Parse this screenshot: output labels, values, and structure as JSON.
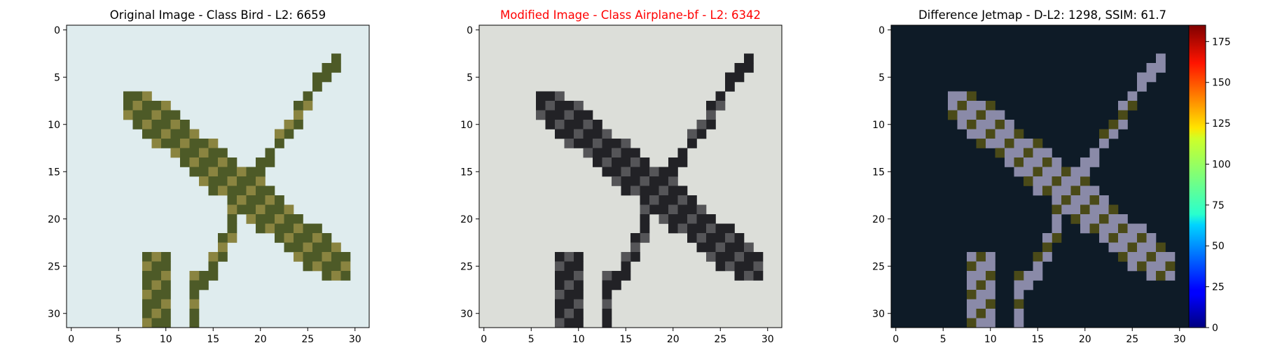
{
  "chart_data": [
    {
      "type": "heatmap",
      "title": "Original Image - Class Bird - L2: 6659",
      "title_color": "#000000",
      "xlim": [
        -0.5,
        31.5
      ],
      "ylim": [
        31.5,
        -0.5
      ],
      "xticks": [
        0,
        5,
        10,
        15,
        20,
        25,
        30
      ],
      "yticks": [
        0,
        5,
        10,
        15,
        20,
        25,
        30
      ],
      "background": "#dfecee",
      "stroke_color": "#4d5a27",
      "highlight_color": "#8a8440"
    },
    {
      "type": "heatmap",
      "title": "Modified Image - Class Airplane-bf - L2: 6342",
      "title_color": "#ff0000",
      "xlim": [
        -0.5,
        31.5
      ],
      "ylim": [
        31.5,
        -0.5
      ],
      "xticks": [
        0,
        5,
        10,
        15,
        20,
        25,
        30
      ],
      "yticks": [
        0,
        5,
        10,
        15,
        20,
        25,
        30
      ],
      "background": "#dcded9",
      "stroke_color": "#222226",
      "highlight_color": "#555558"
    },
    {
      "type": "heatmap",
      "title": "Difference Jetmap - D-L2: 1298, SSIM: 61.7",
      "title_color": "#000000",
      "xlim": [
        -0.5,
        31.5
      ],
      "ylim": [
        31.5,
        -0.5
      ],
      "xticks": [
        0,
        5,
        10,
        15,
        20,
        25,
        30
      ],
      "yticks": [
        0,
        5,
        10,
        15,
        20,
        25,
        30
      ],
      "background": "#0e1b27",
      "stroke_color": "#8a8aa8",
      "highlight_color": "#4a4a18",
      "colorbar": {
        "colormap": "jet",
        "range": [
          0,
          185
        ],
        "ticks": [
          0,
          25,
          50,
          75,
          100,
          125,
          150,
          175
        ]
      }
    }
  ]
}
